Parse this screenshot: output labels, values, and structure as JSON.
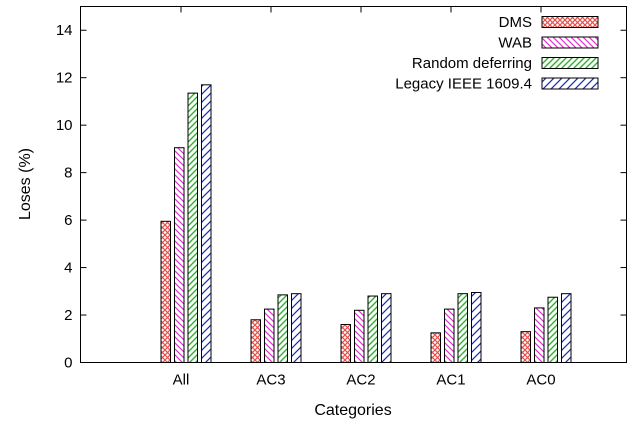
{
  "chart_data": {
    "type": "bar",
    "title": "",
    "xlabel": "Categories",
    "ylabel": "Loses (%)",
    "ylim": [
      0,
      15
    ],
    "yticks": [
      0,
      2,
      4,
      6,
      8,
      10,
      12,
      14
    ],
    "grid": false,
    "legend_position": "top-right",
    "categories": [
      "All",
      "AC3",
      "AC2",
      "AC1",
      "AC0"
    ],
    "series": [
      {
        "name": "DMS",
        "values": [
          5.95,
          1.8,
          1.6,
          1.25,
          1.3
        ],
        "color": "#e8504a",
        "pattern": "crosshatch"
      },
      {
        "name": "WAB",
        "values": [
          9.05,
          2.25,
          2.2,
          2.25,
          2.3
        ],
        "color": "#d838c8",
        "pattern": "diagonal-down"
      },
      {
        "name": "Random deferring",
        "values": [
          11.35,
          2.85,
          2.8,
          2.9,
          2.75
        ],
        "color": "#30b030",
        "pattern": "diagonal-up"
      },
      {
        "name": "Legacy IEEE 1609.4",
        "values": [
          11.7,
          2.9,
          2.9,
          2.95,
          2.9
        ],
        "color": "#1828c0",
        "pattern": "diagonal-up-wide"
      }
    ]
  }
}
